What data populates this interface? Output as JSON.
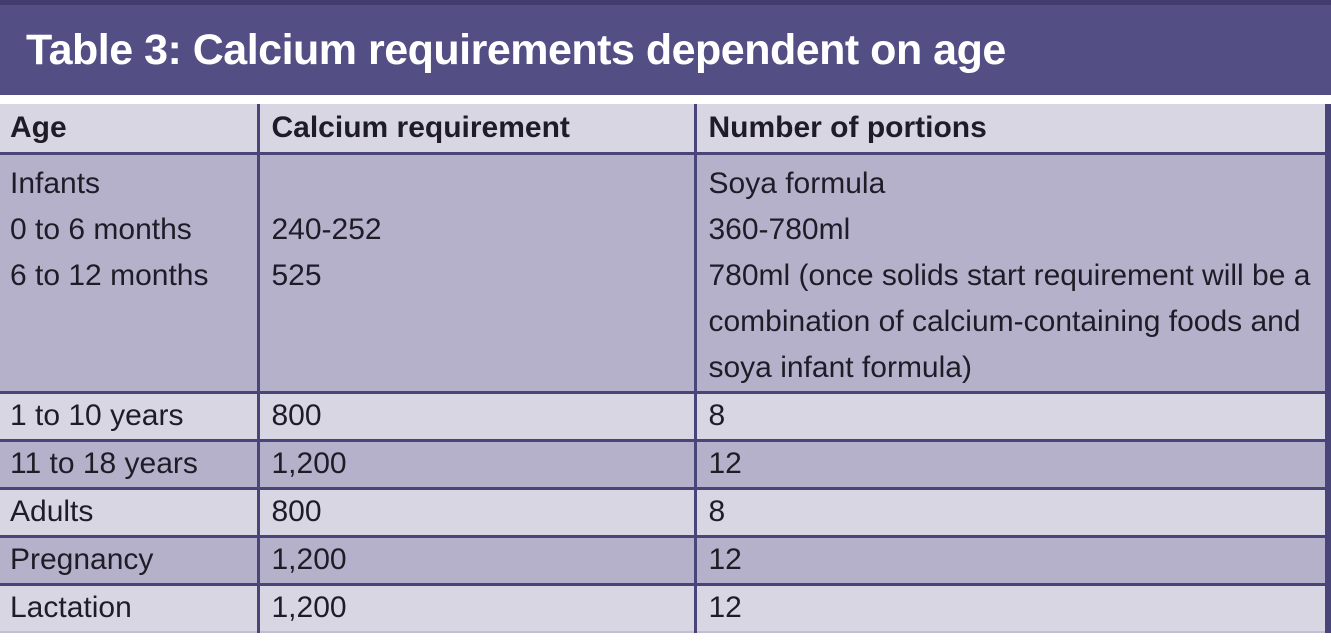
{
  "title": "Table 3: Calcium requirements dependent on age",
  "colors": {
    "title_bar": "#534e84",
    "title_bar_top_strip": "#423d6e",
    "title_text": "#ffffff",
    "grid_border": "#4a4578",
    "row_dark": "#b6b1cb",
    "row_light": "#d9d6e4",
    "body_text": "#1f1c28"
  },
  "table": {
    "columns": [
      "Age",
      "Calcium requirement",
      "Number of portions"
    ],
    "rows": [
      {
        "age": "Infants\n0 to 6 months\n6 to 12 months",
        "calcium": "\n240-252\n525",
        "portions": "Soya formula\n360-780ml\n780ml (once solids start requirement will be a combination of calcium-containing foods and soya infant formula)"
      },
      {
        "age": "1 to 10 years",
        "calcium": "800",
        "portions": "8"
      },
      {
        "age": "11 to 18 years",
        "calcium": "1,200",
        "portions": "12"
      },
      {
        "age": "Adults",
        "calcium": "800",
        "portions": "8"
      },
      {
        "age": "Pregnancy",
        "calcium": "1,200",
        "portions": "12"
      },
      {
        "age": "Lactation",
        "calcium": "1,200",
        "portions": "12"
      }
    ]
  }
}
